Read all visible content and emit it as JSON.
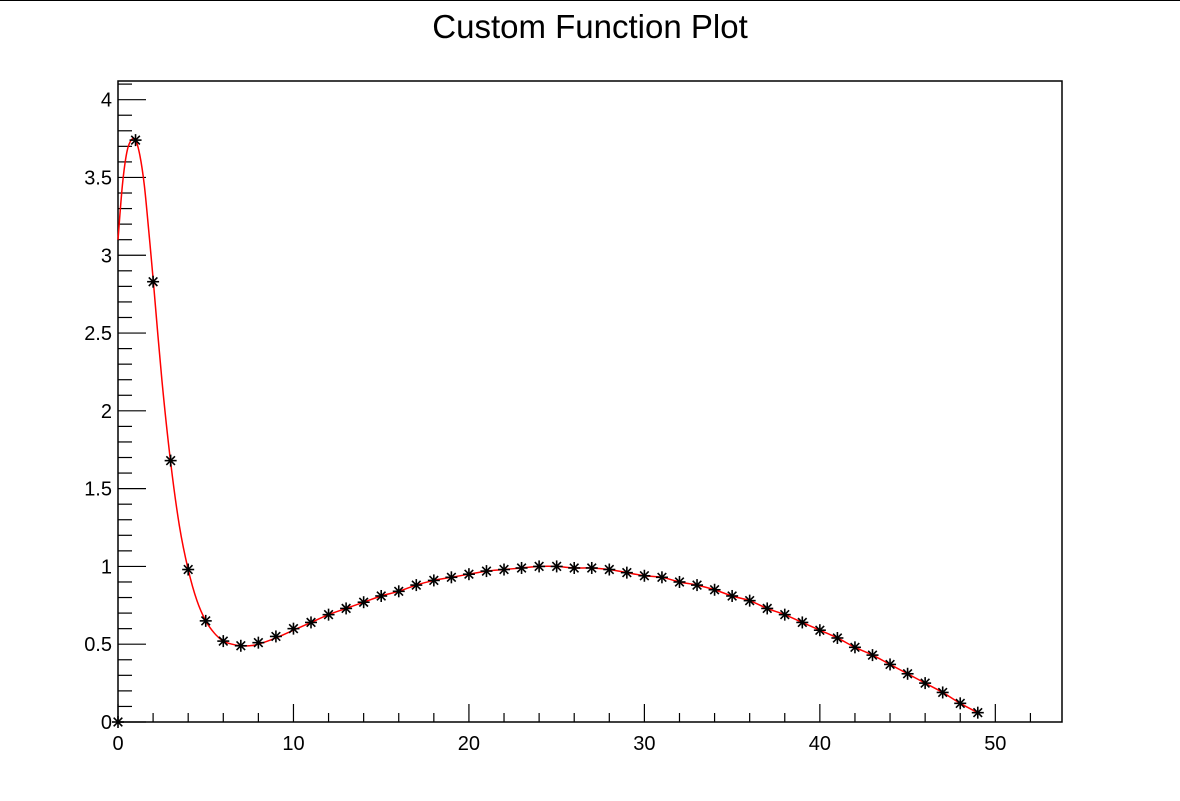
{
  "chart_data": {
    "type": "line",
    "title": "Custom Function Plot",
    "xlabel": "",
    "ylabel": "",
    "xlim": [
      0,
      53.8
    ],
    "ylim": [
      0,
      4.12
    ],
    "x_ticks": [
      0,
      10,
      20,
      30,
      40,
      50
    ],
    "y_ticks": [
      0,
      0.5,
      1,
      1.5,
      2,
      2.5,
      3,
      3.5,
      4
    ],
    "x_tick_labels": [
      "0",
      "10",
      "20",
      "30",
      "40",
      "50"
    ],
    "y_tick_labels": [
      "0",
      "0.5",
      "1",
      "1.5",
      "2",
      "2.5",
      "3",
      "3.5",
      "4"
    ],
    "grid": false,
    "legend": "none",
    "series": [
      {
        "type": "scatter",
        "marker": "asterisk",
        "color": "#000000",
        "x": [
          0,
          1,
          2,
          3,
          4,
          5,
          6,
          7,
          8,
          9,
          10,
          11,
          12,
          13,
          14,
          15,
          16,
          17,
          18,
          19,
          20,
          21,
          22,
          23,
          24,
          25,
          26,
          27,
          28,
          29,
          30,
          31,
          32,
          33,
          34,
          35,
          36,
          37,
          38,
          39,
          40,
          41,
          42,
          43,
          44,
          45,
          46,
          47,
          48,
          49
        ],
        "values": [
          0.0,
          3.74,
          2.83,
          1.68,
          0.98,
          0.65,
          0.52,
          0.49,
          0.51,
          0.55,
          0.6,
          0.64,
          0.69,
          0.73,
          0.77,
          0.81,
          0.84,
          0.88,
          0.91,
          0.93,
          0.95,
          0.97,
          0.98,
          0.99,
          1.0,
          1.0,
          0.99,
          0.99,
          0.98,
          0.96,
          0.94,
          0.93,
          0.9,
          0.88,
          0.85,
          0.81,
          0.78,
          0.73,
          0.69,
          0.64,
          0.59,
          0.54,
          0.48,
          0.43,
          0.37,
          0.31,
          0.25,
          0.19,
          0.12,
          0.06
        ]
      },
      {
        "type": "line",
        "color": "#ff0000",
        "x": [
          0,
          0.25,
          0.5,
          0.75,
          1,
          1.25,
          1.5,
          1.75,
          2,
          2.5,
          3,
          3.5,
          4,
          4.5,
          5,
          5.5,
          6,
          6.5,
          7,
          7.5,
          8,
          9,
          10,
          11,
          12,
          13,
          14,
          15,
          16,
          17,
          18,
          19,
          20,
          21,
          22,
          23,
          24,
          25,
          26,
          27,
          28,
          29,
          30,
          31,
          32,
          33,
          34,
          35,
          36,
          37,
          38,
          39,
          40,
          41,
          42,
          43,
          44,
          45,
          46,
          47,
          48,
          49
        ],
        "values": [
          3.1,
          3.45,
          3.66,
          3.74,
          3.74,
          3.64,
          3.45,
          3.16,
          2.85,
          2.2,
          1.67,
          1.26,
          0.98,
          0.78,
          0.65,
          0.57,
          0.52,
          0.5,
          0.49,
          0.49,
          0.5,
          0.54,
          0.59,
          0.64,
          0.69,
          0.73,
          0.77,
          0.81,
          0.84,
          0.88,
          0.91,
          0.93,
          0.95,
          0.97,
          0.98,
          0.99,
          1.0,
          1.0,
          0.99,
          0.99,
          0.98,
          0.96,
          0.94,
          0.93,
          0.9,
          0.88,
          0.85,
          0.81,
          0.78,
          0.73,
          0.69,
          0.64,
          0.59,
          0.54,
          0.48,
          0.43,
          0.37,
          0.31,
          0.25,
          0.19,
          0.12,
          0.06
        ]
      }
    ]
  }
}
